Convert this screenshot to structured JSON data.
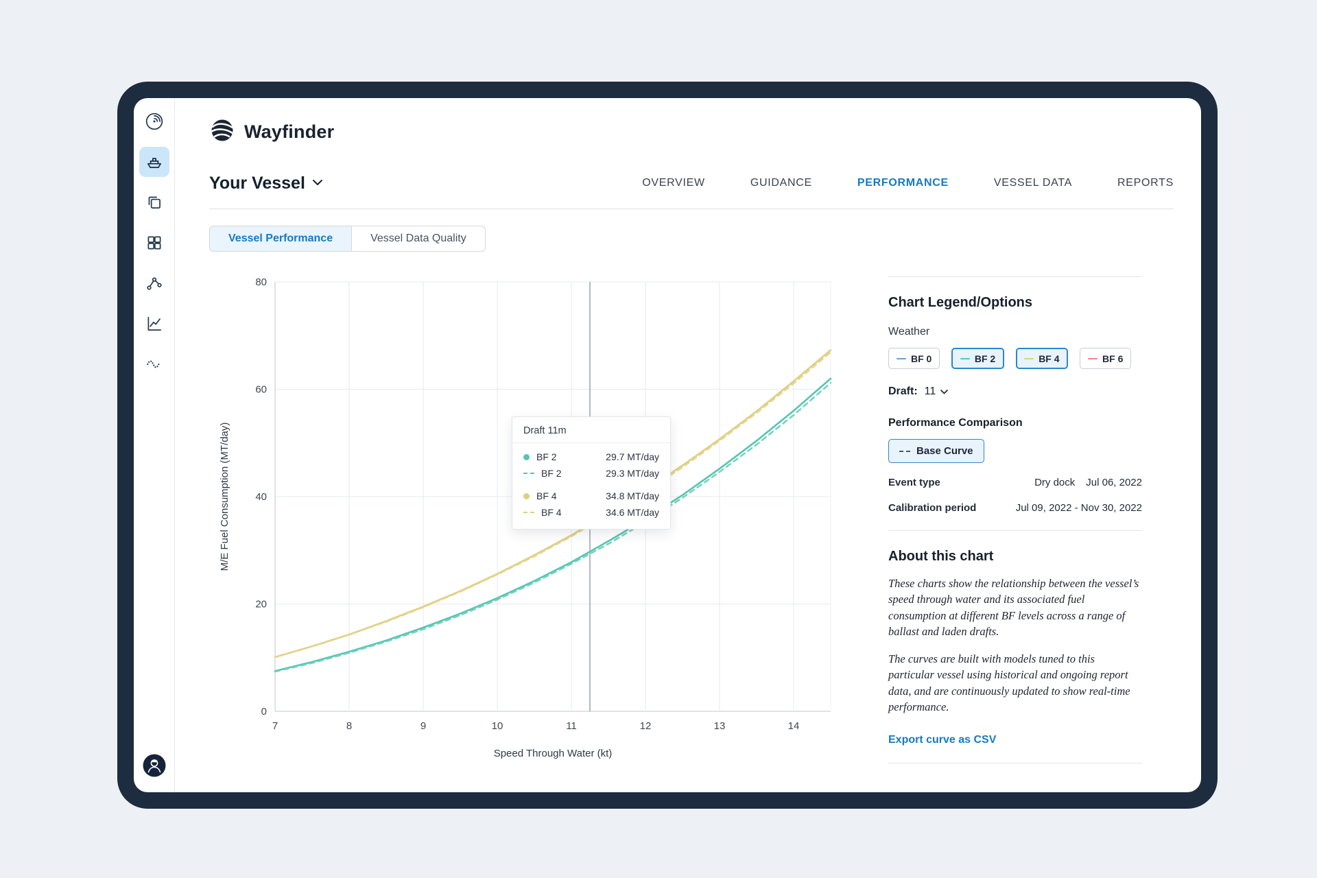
{
  "app": {
    "brand": "Wayfinder"
  },
  "colors": {
    "accent": "#1779c4",
    "frame": "#1d2c3f",
    "bf2_teal": "#53c6b1",
    "bf4_yellow": "#dfce7e",
    "bf0_blue": "#6b9fd4",
    "bf6_coral": "#e98a7b"
  },
  "sidebar": {
    "icons": [
      "weather-overview",
      "vessel",
      "compare-layers",
      "dashboard-grid",
      "route-network",
      "performance-chart",
      "sea-conditions"
    ],
    "active_icon": "vessel",
    "avatar": "user-avatar"
  },
  "header": {
    "vessel_selector": "Your Vessel",
    "nav": [
      {
        "label": "OVERVIEW",
        "active": false
      },
      {
        "label": "GUIDANCE",
        "active": false
      },
      {
        "label": "PERFORMANCE",
        "active": true
      },
      {
        "label": "VESSEL DATA",
        "active": false
      },
      {
        "label": "REPORTS",
        "active": false
      }
    ]
  },
  "tabs": [
    {
      "label": "Vessel Performance",
      "active": true
    },
    {
      "label": "Vessel Data Quality",
      "active": false
    }
  ],
  "tooltip": {
    "title": "Draft 11m",
    "rows": [
      {
        "label": "BF 2",
        "marker": "dot",
        "color": "#53c6b1",
        "value": "29.7 MT/day"
      },
      {
        "label": "BF 2",
        "marker": "dash",
        "color": "#53c6b1",
        "value": "29.3 MT/day"
      },
      {
        "label": "BF 4",
        "marker": "dot",
        "color": "#dfce7e",
        "value": "34.8 MT/day"
      },
      {
        "label": "BF 4",
        "marker": "dash",
        "color": "#dfce7e",
        "value": "34.6 MT/day"
      }
    ]
  },
  "legend_panel": {
    "title": "Chart Legend/Options",
    "weather_label": "Weather",
    "weather_options": [
      {
        "label": "BF 0",
        "color": "#6b9fd4",
        "selected": false
      },
      {
        "label": "BF 2",
        "color": "#53c6b1",
        "selected": true
      },
      {
        "label": "BF 4",
        "color": "#dfce7e",
        "selected": true
      },
      {
        "label": "BF 6",
        "color": "#e98a7b",
        "selected": false
      }
    ],
    "draft_label": "Draft:",
    "draft_value": "11",
    "comparison_label": "Performance Comparison",
    "base_curve": {
      "label": "Base Curve",
      "marker_color": "#4a5560"
    },
    "event_type_label": "Event type",
    "event_type_value": "Dry dock",
    "event_date": "Jul 06, 2022",
    "calibration_label": "Calibration period",
    "calibration_value": "Jul 09, 2022 - Nov 30, 2022",
    "about_title": "About this chart",
    "about_paragraphs": [
      "These charts show the relationship between the vessel’s speed through water and its associated fuel consumption at different BF levels across a range of ballast and laden drafts.",
      "The curves are built with models tuned to this particular vessel using historical and ongoing report data, and are continuously updated to show real-time performance."
    ],
    "export_label": "Export curve as CSV"
  },
  "chart_data": {
    "type": "line",
    "title": "",
    "xlabel": "Speed Through Water (kt)",
    "ylabel": "M/E Fuel Consumption (MT/day)",
    "xlim": [
      7,
      14.5
    ],
    "ylim": [
      0,
      80
    ],
    "xticks": [
      7,
      8,
      9,
      10,
      11,
      12,
      13,
      14
    ],
    "yticks": [
      0,
      20,
      40,
      60,
      80
    ],
    "grid": true,
    "hover_x": 11.25,
    "x": [
      7.0,
      7.5,
      8.0,
      8.5,
      9.0,
      9.5,
      10.0,
      10.5,
      11.0,
      11.5,
      12.0,
      12.5,
      13.0,
      13.5,
      14.0,
      14.5
    ],
    "series": [
      {
        "name": "BF 4",
        "style": "solid",
        "color": "#dfce7e",
        "values": [
          10.1,
          12.1,
          14.3,
          16.8,
          19.5,
          22.4,
          25.6,
          29.1,
          32.8,
          36.9,
          41.2,
          45.8,
          50.7,
          55.9,
          61.5,
          67.3
        ]
      },
      {
        "name": "BF 4 base curve",
        "style": "dashed",
        "color": "#e4d48b",
        "values": [
          10.1,
          12.1,
          14.3,
          16.7,
          19.4,
          22.3,
          25.5,
          28.9,
          32.6,
          36.7,
          40.9,
          45.5,
          50.4,
          55.6,
          61.1,
          66.9
        ]
      },
      {
        "name": "BF 2",
        "style": "solid",
        "color": "#53c6b1",
        "values": [
          7.5,
          9.2,
          11.1,
          13.2,
          15.6,
          18.2,
          21.1,
          24.3,
          27.8,
          31.7,
          35.8,
          40.3,
          45.2,
          50.4,
          56.0,
          62.0
        ]
      },
      {
        "name": "BF 2 base curve",
        "style": "dashed",
        "color": "#6fd0bd",
        "values": [
          7.4,
          9.0,
          10.9,
          13.0,
          15.3,
          17.9,
          20.8,
          24.0,
          27.5,
          31.2,
          35.3,
          39.8,
          44.6,
          49.7,
          55.2,
          61.2
        ]
      }
    ],
    "legend_position": "right-panel"
  }
}
